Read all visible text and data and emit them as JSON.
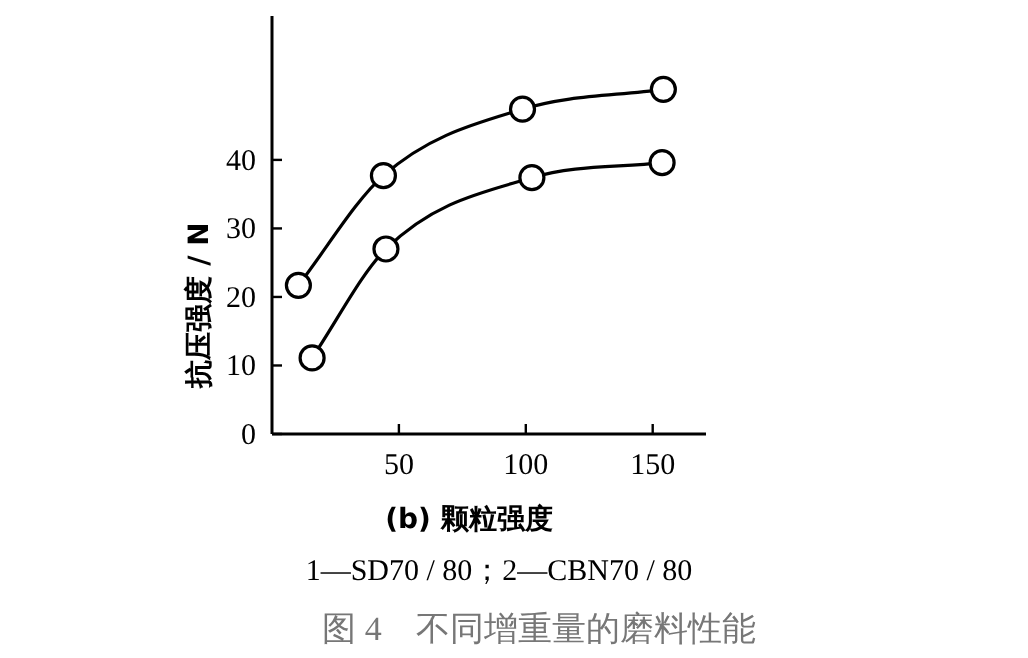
{
  "chart_data": {
    "type": "line",
    "xlabel": "(b) 颗粒强度",
    "ylabel": "抗压强度 / N",
    "annotations": [
      "1—SD70 / 80；2—CBN70 / 80",
      "图 4　不同增重量的磨料性能"
    ],
    "series": [
      {
        "color": "#000000",
        "x": [
          10.4,
          43.9,
          98.7,
          154.2
        ],
        "values": [
          21.7,
          37.7,
          47.4,
          50.3
        ]
      },
      {
        "color": "#000000",
        "x": [
          15.8,
          44.9,
          102.4,
          153.7
        ],
        "values": [
          11.1,
          27.0,
          37.4,
          39.6
        ]
      }
    ],
    "xlim": [
      0,
      171
    ],
    "ylim": [
      0,
      61
    ],
    "xticks": [
      50,
      100,
      150
    ],
    "yticks": [
      0,
      10,
      20,
      30,
      40
    ],
    "marker": "circle",
    "line_style": "solid"
  }
}
